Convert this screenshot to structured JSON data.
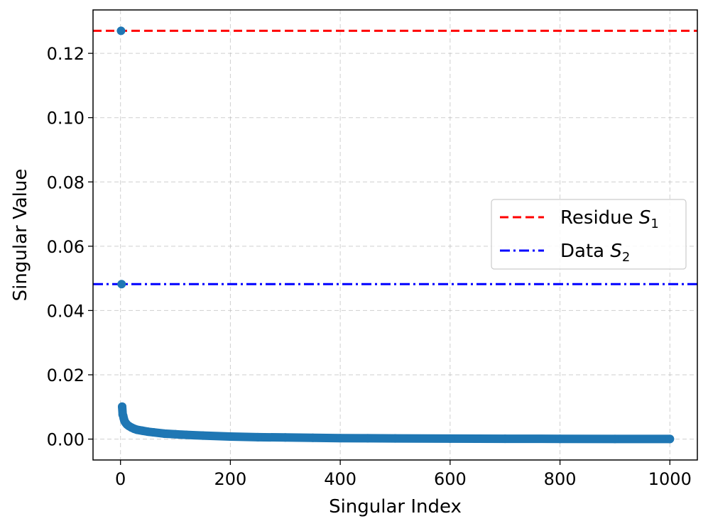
{
  "chart_data": {
    "type": "scatter",
    "xlabel": "Singular Index",
    "ylabel": "Singular Value",
    "xlim": [
      -50,
      1050
    ],
    "ylim": [
      -0.0065,
      0.1335
    ],
    "xticks": [
      0,
      200,
      400,
      600,
      800,
      1000
    ],
    "yticks": [
      0.0,
      0.02,
      0.04,
      0.06,
      0.08,
      0.1,
      0.12
    ],
    "xtick_labels": [
      "0",
      "200",
      "400",
      "600",
      "800",
      "1000"
    ],
    "ytick_labels": [
      "0.00",
      "0.02",
      "0.04",
      "0.06",
      "0.08",
      "0.10",
      "0.12"
    ],
    "grid": true,
    "series": [
      {
        "marker": "circle",
        "color": "#1f77b4",
        "x": [
          1,
          2,
          3,
          4,
          5,
          6,
          7,
          8,
          10,
          12,
          15,
          20,
          25,
          30,
          40,
          50,
          60,
          80,
          100,
          120,
          150,
          200,
          250,
          300,
          350,
          400,
          450,
          500,
          600,
          700,
          800,
          900,
          1000
        ],
        "y": [
          0.127,
          0.0482,
          0.0101,
          0.0076,
          0.0072,
          0.0064,
          0.0058,
          0.0054,
          0.0049,
          0.0045,
          0.0041,
          0.0036,
          0.0032,
          0.0029,
          0.0026,
          0.0023,
          0.0021,
          0.0017,
          0.0015,
          0.0013,
          0.0011,
          0.0008,
          0.0006,
          0.0005,
          0.0004,
          0.0003,
          0.00025,
          0.0002,
          0.00015,
          0.0001,
          8e-05,
          5e-05,
          3e-05
        ]
      }
    ],
    "hlines": [
      {
        "name": "Residue S1",
        "y": 0.127,
        "color": "#ff0000",
        "style": "dashed"
      },
      {
        "name": "Data S2",
        "y": 0.0482,
        "color": "#0000ff",
        "style": "dashdot"
      }
    ],
    "legend": {
      "placement": "center-right",
      "entries": [
        {
          "label_main": "Residue ",
          "label_var": "S",
          "label_sub": "1",
          "color": "#ff0000",
          "style": "dashed"
        },
        {
          "label_main": "Data ",
          "label_var": "S",
          "label_sub": "2",
          "color": "#0000ff",
          "style": "dashdot"
        }
      ]
    }
  }
}
